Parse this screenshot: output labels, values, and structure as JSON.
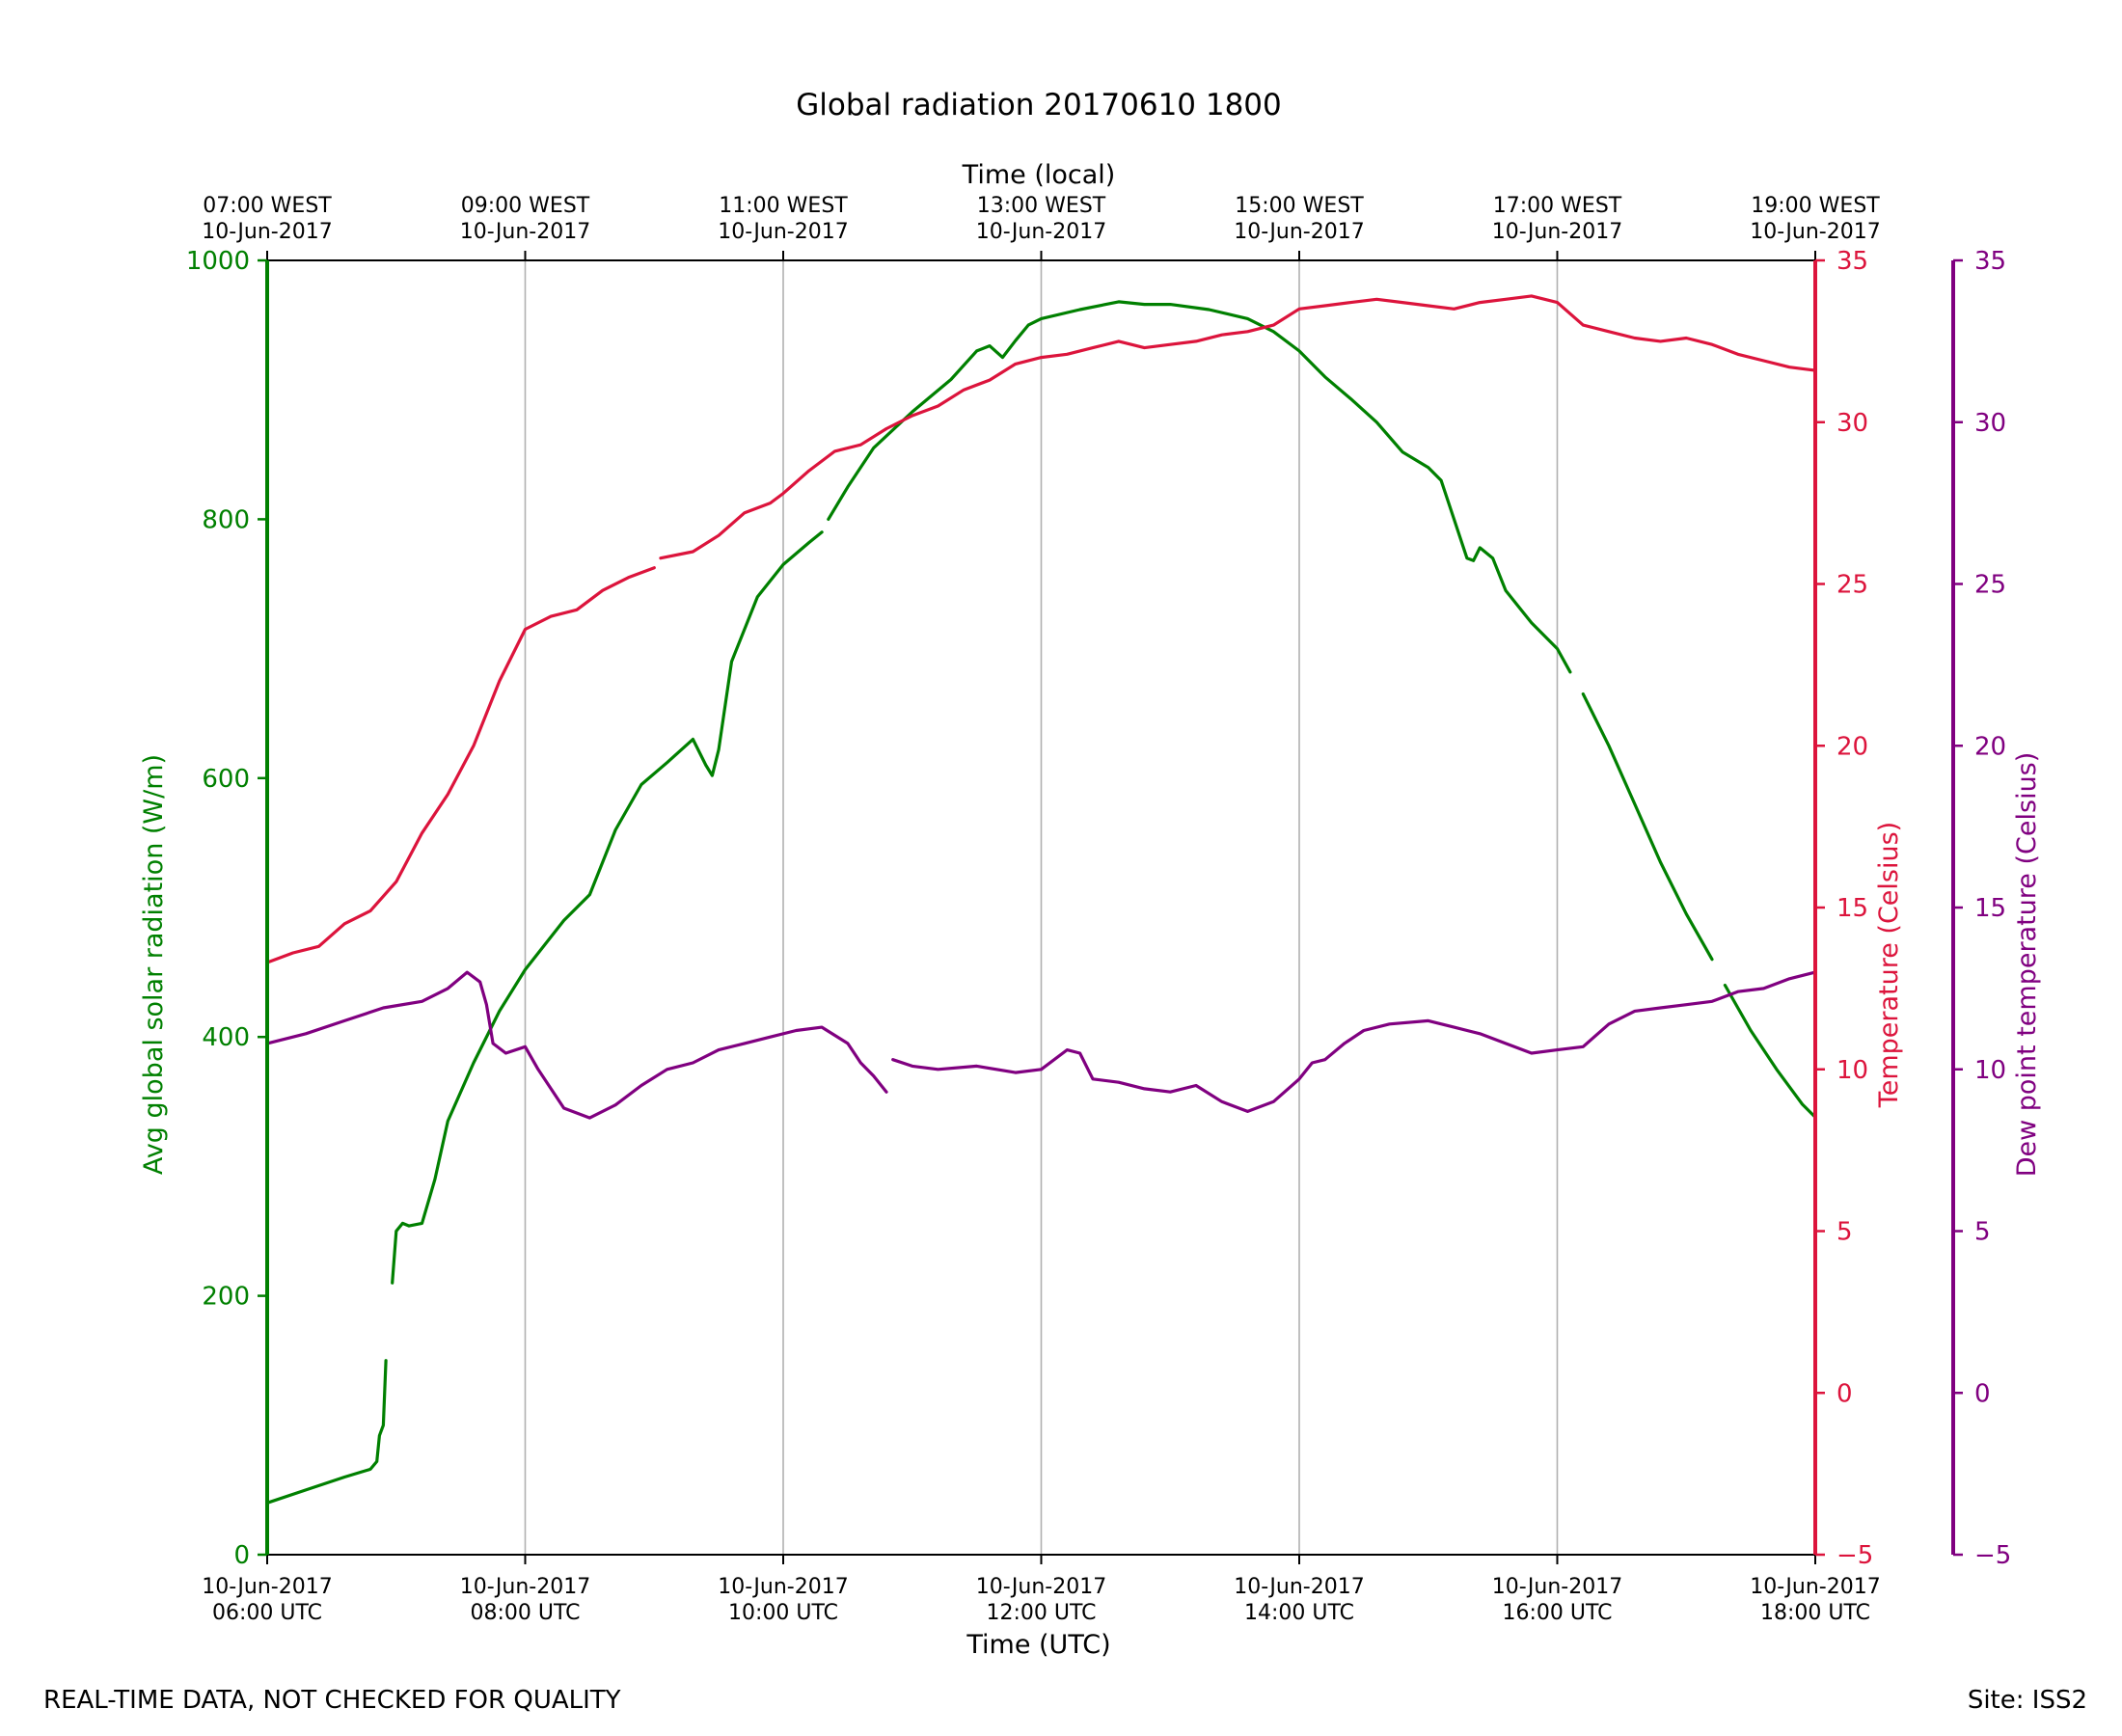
{
  "chart_data": {
    "type": "line",
    "title": "Global radiation 20170610 1800",
    "xlabel": "Time (UTC)",
    "xlabel_top": "Time (local)",
    "x_range_hours_utc": [
      6,
      18
    ],
    "x_ticks_bottom": [
      {
        "hour": 6,
        "line1": "10-Jun-2017",
        "line2": "06:00 UTC"
      },
      {
        "hour": 8,
        "line1": "10-Jun-2017",
        "line2": "08:00 UTC"
      },
      {
        "hour": 10,
        "line1": "10-Jun-2017",
        "line2": "10:00 UTC"
      },
      {
        "hour": 12,
        "line1": "10-Jun-2017",
        "line2": "12:00 UTC"
      },
      {
        "hour": 14,
        "line1": "10-Jun-2017",
        "line2": "14:00 UTC"
      },
      {
        "hour": 16,
        "line1": "10-Jun-2017",
        "line2": "16:00 UTC"
      },
      {
        "hour": 18,
        "line1": "10-Jun-2017",
        "line2": "18:00 UTC"
      }
    ],
    "x_ticks_top": [
      {
        "hour": 6,
        "line1": "07:00 WEST",
        "line2": "10-Jun-2017"
      },
      {
        "hour": 8,
        "line1": "09:00 WEST",
        "line2": "10-Jun-2017"
      },
      {
        "hour": 10,
        "line1": "11:00 WEST",
        "line2": "10-Jun-2017"
      },
      {
        "hour": 12,
        "line1": "13:00 WEST",
        "line2": "10-Jun-2017"
      },
      {
        "hour": 14,
        "line1": "15:00 WEST",
        "line2": "10-Jun-2017"
      },
      {
        "hour": 16,
        "line1": "17:00 WEST",
        "line2": "10-Jun-2017"
      },
      {
        "hour": 18,
        "line1": "19:00 WEST",
        "line2": "10-Jun-2017"
      }
    ],
    "vertical_grid": true,
    "axes": {
      "radiation": {
        "label": "Avg global solar radiation (W/m)",
        "ylim": [
          0,
          1000
        ],
        "ticks": [
          "0",
          "200",
          "400",
          "600",
          "800",
          "1000"
        ],
        "color": "#008000"
      },
      "temperature": {
        "label": "Temperature (Celsius)",
        "ylim": [
          -5,
          35
        ],
        "ticks": [
          "−5",
          "0",
          "5",
          "10",
          "15",
          "20",
          "25",
          "30",
          "35"
        ],
        "color": "#dc143c"
      },
      "dewpoint": {
        "label": "Dew point temperature (Celsius)",
        "ylim": [
          -5,
          35
        ],
        "ticks": [
          "−5",
          "0",
          "5",
          "10",
          "15",
          "20",
          "25",
          "30",
          "35"
        ],
        "color": "#800080"
      }
    },
    "series": [
      {
        "name": "Avg global solar radiation",
        "axis": "radiation",
        "color": "#008000",
        "segments": [
          [
            [
              6.0,
              40
            ],
            [
              6.3,
              50
            ],
            [
              6.6,
              60
            ],
            [
              6.8,
              66
            ],
            [
              6.85,
              72
            ],
            [
              6.87,
              92
            ],
            [
              6.9,
              100
            ],
            [
              6.92,
              150
            ]
          ],
          [
            [
              6.97,
              210
            ],
            [
              7.0,
              250
            ],
            [
              7.05,
              256
            ],
            [
              7.1,
              254
            ],
            [
              7.2,
              256
            ],
            [
              7.3,
              290
            ],
            [
              7.4,
              335
            ],
            [
              7.6,
              380
            ],
            [
              7.8,
              420
            ],
            [
              8.0,
              452
            ],
            [
              8.3,
              490
            ],
            [
              8.5,
              510
            ],
            [
              8.7,
              560
            ],
            [
              8.9,
              595
            ],
            [
              9.1,
              612
            ],
            [
              9.3,
              630
            ],
            [
              9.4,
              610
            ],
            [
              9.45,
              602
            ],
            [
              9.5,
              622
            ],
            [
              9.6,
              690
            ],
            [
              9.8,
              740
            ],
            [
              10.0,
              765
            ],
            [
              10.2,
              782
            ],
            [
              10.3,
              790
            ]
          ],
          [
            [
              10.35,
              800
            ],
            [
              10.5,
              825
            ],
            [
              10.7,
              855
            ],
            [
              11.0,
              883
            ],
            [
              11.3,
              908
            ],
            [
              11.5,
              930
            ],
            [
              11.6,
              934
            ],
            [
              11.7,
              925
            ],
            [
              11.8,
              938
            ],
            [
              11.9,
              950
            ],
            [
              12.0,
              955
            ],
            [
              12.3,
              962
            ],
            [
              12.6,
              968
            ],
            [
              12.8,
              966
            ],
            [
              13.0,
              966
            ],
            [
              13.3,
              962
            ],
            [
              13.6,
              955
            ],
            [
              13.8,
              945
            ],
            [
              14.0,
              930
            ],
            [
              14.2,
              910
            ],
            [
              14.4,
              893
            ],
            [
              14.6,
              875
            ],
            [
              14.8,
              852
            ],
            [
              15.0,
              840
            ],
            [
              15.1,
              830
            ],
            [
              15.2,
              800
            ],
            [
              15.3,
              770
            ],
            [
              15.35,
              768
            ],
            [
              15.4,
              778
            ],
            [
              15.5,
              770
            ],
            [
              15.6,
              745
            ],
            [
              15.8,
              720
            ],
            [
              16.0,
              700
            ],
            [
              16.1,
              682
            ]
          ],
          [
            [
              16.2,
              665
            ],
            [
              16.4,
              625
            ],
            [
              16.6,
              580
            ],
            [
              16.8,
              535
            ],
            [
              17.0,
              495
            ],
            [
              17.2,
              460
            ]
          ],
          [
            [
              17.3,
              440
            ],
            [
              17.5,
              405
            ],
            [
              17.7,
              375
            ],
            [
              17.9,
              348
            ],
            [
              18.0,
              338
            ]
          ]
        ]
      },
      {
        "name": "Temperature",
        "axis": "temperature",
        "color": "#dc143c",
        "segments": [
          [
            [
              6.0,
              13.3
            ],
            [
              6.2,
              13.6
            ],
            [
              6.4,
              13.8
            ],
            [
              6.6,
              14.5
            ],
            [
              6.8,
              14.9
            ],
            [
              7.0,
              15.8
            ],
            [
              7.2,
              17.3
            ],
            [
              7.4,
              18.5
            ],
            [
              7.6,
              20.0
            ],
            [
              7.8,
              22.0
            ],
            [
              8.0,
              23.6
            ],
            [
              8.2,
              24.0
            ],
            [
              8.4,
              24.2
            ],
            [
              8.6,
              24.8
            ],
            [
              8.8,
              25.2
            ],
            [
              9.0,
              25.5
            ]
          ],
          [
            [
              9.05,
              25.8
            ],
            [
              9.3,
              26.0
            ],
            [
              9.5,
              26.5
            ],
            [
              9.7,
              27.2
            ],
            [
              9.9,
              27.5
            ],
            [
              10.0,
              27.8
            ],
            [
              10.2,
              28.5
            ],
            [
              10.4,
              29.1
            ],
            [
              10.6,
              29.3
            ],
            [
              10.8,
              29.8
            ],
            [
              11.0,
              30.2
            ],
            [
              11.2,
              30.5
            ],
            [
              11.4,
              31.0
            ],
            [
              11.6,
              31.3
            ],
            [
              11.8,
              31.8
            ],
            [
              12.0,
              32.0
            ],
            [
              12.2,
              32.1
            ],
            [
              12.4,
              32.3
            ],
            [
              12.6,
              32.5
            ],
            [
              12.8,
              32.3
            ],
            [
              13.0,
              32.4
            ],
            [
              13.2,
              32.5
            ],
            [
              13.4,
              32.7
            ],
            [
              13.6,
              32.8
            ],
            [
              13.8,
              33.0
            ],
            [
              14.0,
              33.5
            ],
            [
              14.2,
              33.6
            ],
            [
              14.4,
              33.7
            ],
            [
              14.6,
              33.8
            ],
            [
              14.8,
              33.7
            ],
            [
              15.0,
              33.6
            ],
            [
              15.2,
              33.5
            ],
            [
              15.4,
              33.7
            ],
            [
              15.6,
              33.8
            ],
            [
              15.8,
              33.9
            ],
            [
              16.0,
              33.7
            ],
            [
              16.2,
              33.0
            ],
            [
              16.4,
              32.8
            ],
            [
              16.6,
              32.6
            ],
            [
              16.8,
              32.5
            ],
            [
              17.0,
              32.6
            ],
            [
              17.2,
              32.4
            ],
            [
              17.4,
              32.1
            ],
            [
              17.6,
              31.9
            ],
            [
              17.8,
              31.7
            ],
            [
              18.0,
              31.6
            ]
          ]
        ]
      },
      {
        "name": "Dew point temperature",
        "axis": "dewpoint",
        "color": "#800080",
        "segments": [
          [
            [
              6.0,
              10.8
            ],
            [
              6.3,
              11.1
            ],
            [
              6.6,
              11.5
            ],
            [
              6.9,
              11.9
            ],
            [
              7.2,
              12.1
            ],
            [
              7.4,
              12.5
            ],
            [
              7.55,
              13.0
            ],
            [
              7.65,
              12.7
            ],
            [
              7.7,
              12.0
            ],
            [
              7.75,
              10.8
            ],
            [
              7.85,
              10.5
            ],
            [
              8.0,
              10.7
            ],
            [
              8.1,
              10.0
            ],
            [
              8.3,
              8.8
            ],
            [
              8.5,
              8.5
            ],
            [
              8.7,
              8.9
            ],
            [
              8.9,
              9.5
            ],
            [
              9.1,
              10.0
            ],
            [
              9.3,
              10.2
            ],
            [
              9.5,
              10.6
            ],
            [
              9.7,
              10.8
            ],
            [
              9.9,
              11.0
            ],
            [
              10.1,
              11.2
            ],
            [
              10.3,
              11.3
            ],
            [
              10.5,
              10.8
            ],
            [
              10.6,
              10.2
            ],
            [
              10.7,
              9.8
            ],
            [
              10.8,
              9.3
            ]
          ],
          [
            [
              10.85,
              10.3
            ],
            [
              11.0,
              10.1
            ],
            [
              11.2,
              10.0
            ],
            [
              11.5,
              10.1
            ],
            [
              11.8,
              9.9
            ],
            [
              12.0,
              10.0
            ],
            [
              12.2,
              10.6
            ],
            [
              12.3,
              10.5
            ],
            [
              12.4,
              9.7
            ],
            [
              12.6,
              9.6
            ],
            [
              12.8,
              9.4
            ],
            [
              13.0,
              9.3
            ],
            [
              13.2,
              9.5
            ],
            [
              13.4,
              9.0
            ],
            [
              13.6,
              8.7
            ],
            [
              13.8,
              9.0
            ],
            [
              14.0,
              9.7
            ],
            [
              14.1,
              10.2
            ],
            [
              14.2,
              10.3
            ],
            [
              14.35,
              10.8
            ],
            [
              14.5,
              11.2
            ],
            [
              14.7,
              11.4
            ],
            [
              15.0,
              11.5
            ],
            [
              15.2,
              11.3
            ],
            [
              15.4,
              11.1
            ],
            [
              15.6,
              10.8
            ],
            [
              15.8,
              10.5
            ],
            [
              16.0,
              10.6
            ],
            [
              16.2,
              10.7
            ],
            [
              16.4,
              11.4
            ],
            [
              16.6,
              11.8
            ],
            [
              16.8,
              11.9
            ],
            [
              17.0,
              12.0
            ],
            [
              17.2,
              12.1
            ],
            [
              17.4,
              12.4
            ],
            [
              17.6,
              12.5
            ],
            [
              17.8,
              12.8
            ],
            [
              18.0,
              13.0
            ]
          ]
        ]
      }
    ]
  },
  "footer": {
    "left_note": "REAL-TIME DATA, NOT CHECKED FOR QUALITY",
    "site": "Site: ISS2"
  }
}
